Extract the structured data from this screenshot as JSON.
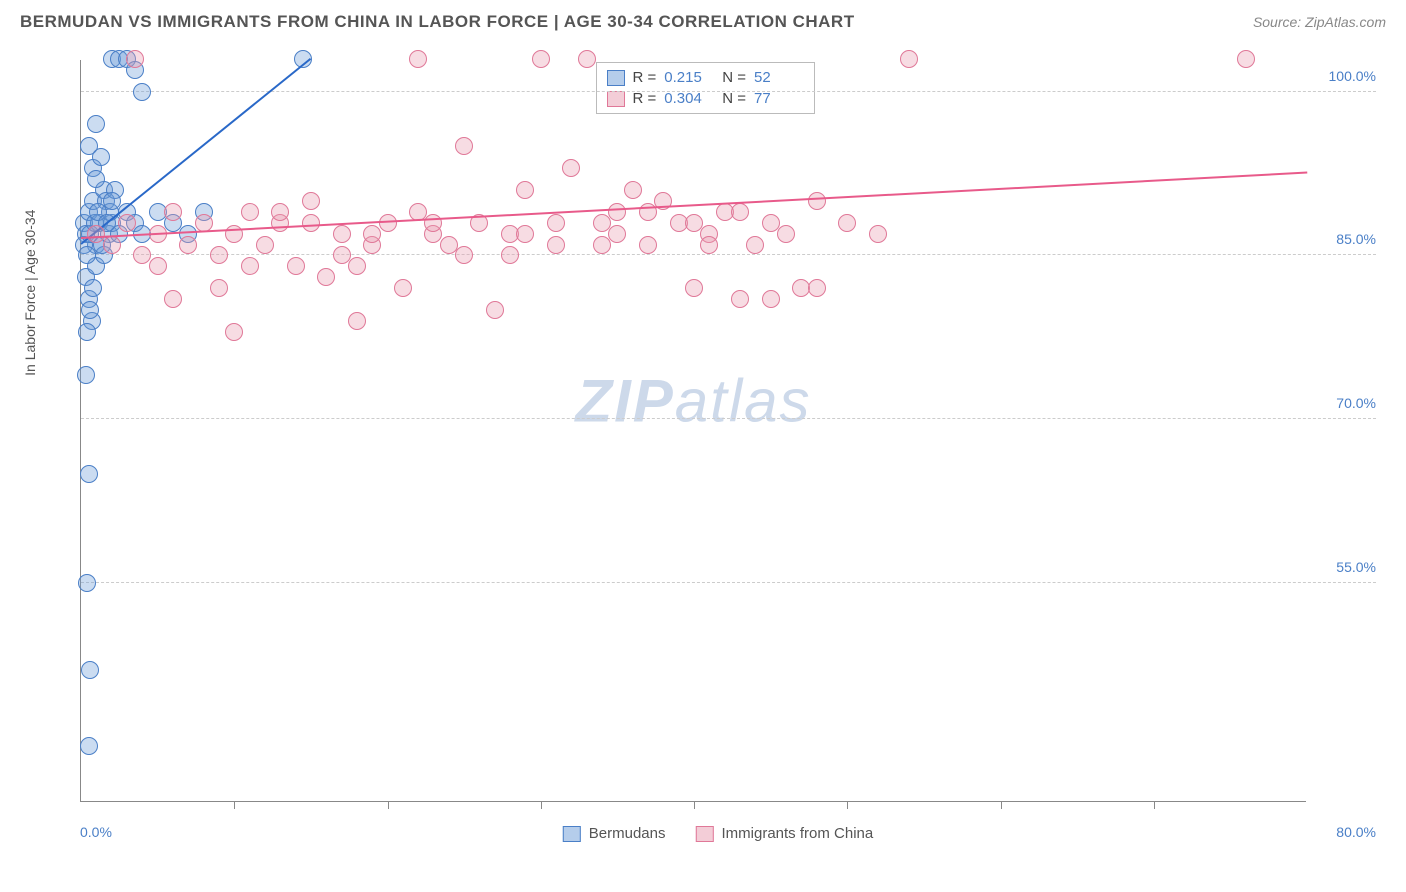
{
  "header": {
    "title": "BERMUDAN VS IMMIGRANTS FROM CHINA IN LABOR FORCE | AGE 30-34 CORRELATION CHART",
    "source": "Source: ZipAtlas.com"
  },
  "watermark": {
    "zip": "ZIP",
    "atlas": "atlas"
  },
  "chart": {
    "type": "scatter",
    "ylabel": "In Labor Force | Age 30-34",
    "background_color": "#ffffff",
    "grid_color": "#cccccc",
    "axis_color": "#888888",
    "label_color": "#555555",
    "tick_color": "#4a7fc7",
    "xlim": [
      0,
      80
    ],
    "ylim": [
      35,
      103
    ],
    "xtick_labels": {
      "left": "0.0%",
      "right": "80.0%"
    },
    "xtick_positions": [
      10,
      20,
      30,
      40,
      50,
      60,
      70
    ],
    "ytick_labels": [
      {
        "value": 100,
        "label": "100.0%"
      },
      {
        "value": 85,
        "label": "85.0%"
      },
      {
        "value": 70,
        "label": "70.0%"
      },
      {
        "value": 55,
        "label": "55.0%"
      }
    ],
    "marker_radius": 9,
    "marker_opacity": 0.35,
    "series": [
      {
        "name": "Bermudans",
        "color": "#6b9bd8",
        "fill": "rgba(107,155,216,0.35)",
        "stroke": "#4a7fc7",
        "R": "0.215",
        "N": "52",
        "trend": {
          "x1": 0,
          "y1": 86,
          "x2": 15,
          "y2": 103,
          "color": "#2968c8",
          "width": 2
        },
        "points": [
          [
            0.2,
            88
          ],
          [
            0.3,
            87
          ],
          [
            0.5,
            89
          ],
          [
            0.8,
            90
          ],
          [
            1.0,
            86
          ],
          [
            1.2,
            88
          ],
          [
            1.5,
            91
          ],
          [
            1.8,
            87
          ],
          [
            2.0,
            103
          ],
          [
            2.5,
            103
          ],
          [
            3.0,
            103
          ],
          [
            3.5,
            102
          ],
          [
            4.0,
            100
          ],
          [
            0.5,
            95
          ],
          [
            0.8,
            93
          ],
          [
            1.0,
            97
          ],
          [
            0.3,
            83
          ],
          [
            0.5,
            81
          ],
          [
            0.7,
            79
          ],
          [
            0.4,
            78
          ],
          [
            0.6,
            80
          ],
          [
            0.8,
            82
          ],
          [
            1.0,
            84
          ],
          [
            1.5,
            85
          ],
          [
            0.3,
            74
          ],
          [
            0.5,
            65
          ],
          [
            0.4,
            55
          ],
          [
            0.6,
            47
          ],
          [
            0.5,
            40
          ],
          [
            2.0,
            88
          ],
          [
            2.5,
            87
          ],
          [
            3.0,
            89
          ],
          [
            3.5,
            88
          ],
          [
            4.0,
            87
          ],
          [
            5.0,
            89
          ],
          [
            6.0,
            88
          ],
          [
            7.0,
            87
          ],
          [
            8.0,
            89
          ],
          [
            14.5,
            103
          ],
          [
            1.0,
            92
          ],
          [
            1.3,
            94
          ],
          [
            1.6,
            90
          ],
          [
            1.9,
            89
          ],
          [
            2.2,
            91
          ],
          [
            0.2,
            86
          ],
          [
            0.4,
            85
          ],
          [
            0.6,
            87
          ],
          [
            0.9,
            88
          ],
          [
            1.1,
            89
          ],
          [
            1.4,
            86
          ],
          [
            1.7,
            88
          ],
          [
            2.0,
            90
          ]
        ]
      },
      {
        "name": "Immigants from China",
        "legend_label": "Immigrants from China",
        "color": "#e89cb0",
        "fill": "rgba(232,156,176,0.35)",
        "stroke": "#e07898",
        "R": "0.304",
        "N": "77",
        "trend": {
          "x1": 0,
          "y1": 86.5,
          "x2": 80,
          "y2": 92.5,
          "color": "#e85a8a",
          "width": 2
        },
        "points": [
          [
            1,
            87
          ],
          [
            2,
            86
          ],
          [
            3,
            88
          ],
          [
            4,
            85
          ],
          [
            5,
            87
          ],
          [
            6,
            89
          ],
          [
            7,
            86
          ],
          [
            8,
            88
          ],
          [
            9,
            85
          ],
          [
            10,
            87
          ],
          [
            11,
            89
          ],
          [
            12,
            86
          ],
          [
            13,
            88
          ],
          [
            14,
            84
          ],
          [
            15,
            90
          ],
          [
            16,
            83
          ],
          [
            17,
            87
          ],
          [
            18,
            84
          ],
          [
            19,
            86
          ],
          [
            20,
            88
          ],
          [
            21,
            82
          ],
          [
            22,
            103
          ],
          [
            23,
            87
          ],
          [
            24,
            86
          ],
          [
            25,
            95
          ],
          [
            26,
            88
          ],
          [
            27,
            80
          ],
          [
            28,
            87
          ],
          [
            29,
            91
          ],
          [
            30,
            103
          ],
          [
            31,
            86
          ],
          [
            32,
            93
          ],
          [
            33,
            103
          ],
          [
            34,
            88
          ],
          [
            35,
            87
          ],
          [
            36,
            91
          ],
          [
            37,
            89
          ],
          [
            38,
            90
          ],
          [
            39,
            88
          ],
          [
            40,
            82
          ],
          [
            41,
            87
          ],
          [
            42,
            89
          ],
          [
            43,
            81
          ],
          [
            44,
            86
          ],
          [
            45,
            88
          ],
          [
            46,
            87
          ],
          [
            47,
            82
          ],
          [
            48,
            90
          ],
          [
            50,
            88
          ],
          [
            52,
            87
          ],
          [
            54,
            103
          ],
          [
            76,
            103
          ],
          [
            10,
            78
          ],
          [
            18,
            79
          ],
          [
            45,
            81
          ],
          [
            3.5,
            103
          ],
          [
            48,
            82
          ],
          [
            6,
            81
          ],
          [
            15,
            88
          ],
          [
            22,
            89
          ],
          [
            28,
            85
          ],
          [
            34,
            86
          ],
          [
            40,
            88
          ],
          [
            11,
            84
          ],
          [
            17,
            85
          ],
          [
            23,
            88
          ],
          [
            29,
            87
          ],
          [
            35,
            89
          ],
          [
            41,
            86
          ],
          [
            5,
            84
          ],
          [
            9,
            82
          ],
          [
            13,
            89
          ],
          [
            19,
            87
          ],
          [
            25,
            85
          ],
          [
            31,
            88
          ],
          [
            37,
            86
          ],
          [
            43,
            89
          ]
        ]
      }
    ],
    "stats_box": {
      "rows": [
        {
          "swatch_fill": "rgba(107,155,216,0.5)",
          "swatch_stroke": "#4a7fc7",
          "r_label": "R =",
          "r_val": "0.215",
          "n_label": "N =",
          "n_val": "52"
        },
        {
          "swatch_fill": "rgba(232,156,176,0.5)",
          "swatch_stroke": "#e07898",
          "r_label": "R =",
          "r_val": "0.304",
          "n_label": "N =",
          "n_val": "77"
        }
      ]
    },
    "legend": [
      {
        "fill": "rgba(107,155,216,0.5)",
        "stroke": "#4a7fc7",
        "label": "Bermudans"
      },
      {
        "fill": "rgba(232,156,176,0.5)",
        "stroke": "#e07898",
        "label": "Immigrants from China"
      }
    ]
  }
}
